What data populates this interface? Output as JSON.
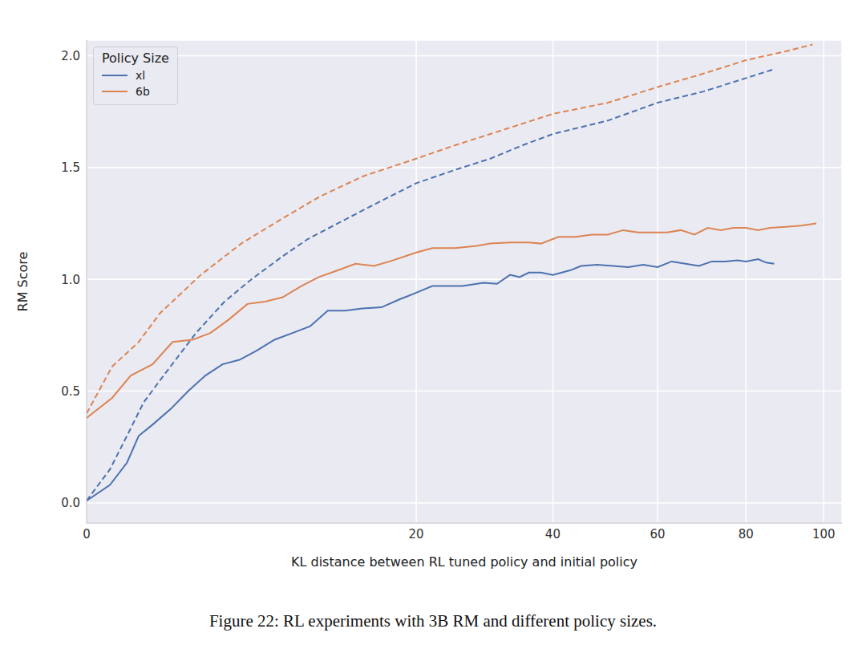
{
  "chart_data": {
    "type": "line",
    "caption": "Figure 22: RL experiments with 3B RM and different policy sizes.",
    "x_label": "KL distance between RL tuned policy and initial policy",
    "y_label": "RM Score",
    "legend_title": "Policy Size",
    "legend": "upper left",
    "grid": true,
    "xlim": [
      0,
      105
    ],
    "xticks": [
      0,
      20,
      40,
      60,
      80,
      100
    ],
    "ylim": [
      -0.09,
      2.07
    ],
    "yticks": [
      {
        "value": 0,
        "label": "0.0"
      },
      0.5,
      {
        "value": 1,
        "label": "1.0"
      },
      1.5,
      {
        "value": 2,
        "label": "2.0"
      }
    ],
    "series": [
      {
        "name": "xl",
        "color": "#4c72b0",
        "line_style": "solid",
        "x": [
          0,
          0.1,
          0.3,
          0.5,
          0.8,
          1.3,
          1.9,
          2.6,
          3.4,
          4.3,
          5.3,
          6.5,
          7.8,
          9.2,
          10.7,
          12.3,
          14,
          16,
          18,
          20,
          22,
          24,
          26,
          29,
          31,
          33,
          34.5,
          36,
          38,
          40,
          43,
          45,
          48,
          51,
          54,
          57,
          60,
          63,
          66,
          69,
          72,
          75,
          78,
          80,
          83,
          85,
          87
        ],
        "values": [
          0.01,
          0.08,
          0.18,
          0.3,
          0.35,
          0.42,
          0.5,
          0.57,
          0.62,
          0.64,
          0.68,
          0.73,
          0.76,
          0.79,
          0.86,
          0.86,
          0.87,
          0.875,
          0.91,
          0.94,
          0.97,
          0.97,
          0.97,
          0.985,
          0.98,
          1.02,
          1.01,
          1.03,
          1.03,
          1.02,
          1.04,
          1.06,
          1.065,
          1.06,
          1.055,
          1.065,
          1.055,
          1.08,
          1.07,
          1.06,
          1.08,
          1.08,
          1.085,
          1.08,
          1.09,
          1.075,
          1.07
        ]
      },
      {
        "name": "6b",
        "color": "#dd8452",
        "line_style": "solid",
        "x": [
          0,
          0.12,
          0.36,
          0.8,
          1.36,
          2.07,
          2.82,
          3.72,
          4.76,
          5.86,
          7.08,
          8.48,
          9.93,
          11.6,
          13.3,
          15.2,
          16.9,
          20,
          22,
          25,
          28,
          30,
          33,
          36,
          38,
          41,
          44,
          47,
          50,
          53,
          56,
          59,
          62,
          65,
          68,
          71,
          74,
          77,
          80,
          83,
          86,
          90,
          94,
          98
        ],
        "values": [
          0.38,
          0.47,
          0.57,
          0.62,
          0.72,
          0.73,
          0.76,
          0.82,
          0.89,
          0.9,
          0.92,
          0.97,
          1.01,
          1.04,
          1.07,
          1.06,
          1.08,
          1.12,
          1.14,
          1.14,
          1.15,
          1.16,
          1.165,
          1.165,
          1.16,
          1.19,
          1.19,
          1.2,
          1.2,
          1.22,
          1.21,
          1.21,
          1.21,
          1.22,
          1.2,
          1.23,
          1.22,
          1.23,
          1.23,
          1.22,
          1.23,
          1.235,
          1.24,
          1.25
        ]
      },
      {
        "color": "#4c72b0",
        "line_style": "dashed",
        "x": [
          0,
          0.1,
          0.3,
          0.6,
          1,
          2.2,
          3.5,
          5,
          7,
          9,
          12,
          15,
          20,
          25,
          30,
          35,
          40,
          50,
          60,
          70,
          80,
          87
        ],
        "values": [
          0.01,
          0.15,
          0.3,
          0.45,
          0.55,
          0.76,
          0.9,
          1,
          1.1,
          1.18,
          1.26,
          1.33,
          1.43,
          1.49,
          1.54,
          1.6,
          1.65,
          1.71,
          1.79,
          1.84,
          1.9,
          1.94
        ]
      },
      {
        "color": "#dd8452",
        "line_style": "dashed",
        "x": [
          0,
          0.12,
          0.5,
          1,
          2.4,
          4.4,
          7,
          10,
          14,
          20,
          25,
          30,
          40,
          50,
          60,
          70,
          80,
          90,
          97
        ],
        "values": [
          0.4,
          0.61,
          0.72,
          0.85,
          1.02,
          1.16,
          1.27,
          1.37,
          1.46,
          1.54,
          1.6,
          1.65,
          1.74,
          1.79,
          1.86,
          1.92,
          1.98,
          2.02,
          2.05
        ]
      }
    ]
  }
}
